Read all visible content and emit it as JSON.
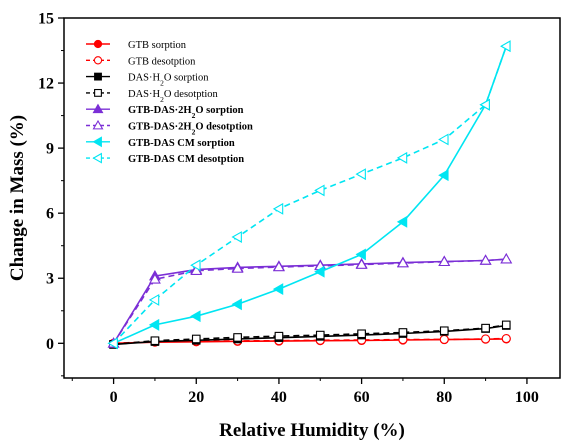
{
  "chart_data": {
    "type": "line",
    "xlabel": "Relative Humidity (%)",
    "ylabel": "Change in Mass (%)",
    "xlim": [
      -12,
      108
    ],
    "ylim": [
      -1.6,
      15
    ],
    "xticks": [
      0,
      20,
      40,
      60,
      80,
      100
    ],
    "yticks": [
      0,
      3,
      6,
      9,
      12,
      15
    ],
    "xtick_labels": [
      "0",
      "20",
      "40",
      "60",
      "80",
      "100"
    ],
    "ytick_labels": [
      "0",
      "3",
      "6",
      "9",
      "12",
      "15"
    ],
    "grid": false,
    "legend_position": "top-left",
    "series": [
      {
        "name": "GTB sorption",
        "legend_pre": "GTB sorption",
        "legend_sub": "",
        "legend_post": "",
        "bold": false,
        "color": "#ff0000",
        "marker": "circle",
        "filled": true,
        "dashed": false,
        "x": [
          0,
          10,
          20,
          30,
          40,
          50,
          60,
          70,
          80,
          90,
          95
        ],
        "y": [
          0,
          0.05,
          0.07,
          0.09,
          0.1,
          0.12,
          0.13,
          0.15,
          0.17,
          0.19,
          0.2
        ]
      },
      {
        "name": "GTB desotption",
        "legend_pre": "GTB desotption",
        "legend_sub": "",
        "legend_post": "",
        "bold": false,
        "color": "#ff0000",
        "marker": "circle",
        "filled": false,
        "dashed": true,
        "x": [
          0,
          10,
          20,
          30,
          40,
          50,
          60,
          70,
          80,
          90,
          95
        ],
        "y": [
          0,
          0.07,
          0.09,
          0.11,
          0.12,
          0.14,
          0.15,
          0.17,
          0.18,
          0.2,
          0.22
        ]
      },
      {
        "name": "DAS·H2O sorption",
        "legend_pre": "DAS·H",
        "legend_sub": "2",
        "legend_post": "O sorption",
        "bold": false,
        "color": "#000000",
        "marker": "square",
        "filled": true,
        "dashed": false,
        "x": [
          0,
          10,
          20,
          30,
          40,
          50,
          60,
          70,
          80,
          90,
          95
        ],
        "y": [
          -0.05,
          0.08,
          0.14,
          0.2,
          0.26,
          0.32,
          0.38,
          0.45,
          0.55,
          0.68,
          0.82
        ]
      },
      {
        "name": "DAS·H2O desotption",
        "legend_pre": "DAS·H",
        "legend_sub": "2",
        "legend_post": "O desotption",
        "bold": false,
        "color": "#000000",
        "marker": "square",
        "filled": false,
        "dashed": true,
        "x": [
          0,
          10,
          20,
          30,
          40,
          50,
          60,
          70,
          80,
          90,
          95
        ],
        "y": [
          -0.05,
          0.12,
          0.2,
          0.27,
          0.33,
          0.38,
          0.44,
          0.5,
          0.58,
          0.7,
          0.85
        ]
      },
      {
        "name": "GTB-DAS·2H2O sorption",
        "legend_pre": "GTB-DAS·2H",
        "legend_sub": "2",
        "legend_post": "O sorption",
        "bold": true,
        "color": "#7b2fd6",
        "marker": "triangle-up",
        "filled": true,
        "dashed": false,
        "x": [
          0,
          10,
          20,
          30,
          40,
          50,
          60,
          70,
          80,
          90,
          95
        ],
        "y": [
          0,
          3.1,
          3.4,
          3.5,
          3.55,
          3.6,
          3.66,
          3.72,
          3.77,
          3.82,
          3.88
        ]
      },
      {
        "name": "GTB-DAS·2H2O desotption",
        "legend_pre": "GTB-DAS·2H",
        "legend_sub": "2",
        "legend_post": "O desotption",
        "bold": true,
        "color": "#7b2fd6",
        "marker": "triangle-up",
        "filled": false,
        "dashed": true,
        "x": [
          0,
          10,
          20,
          30,
          40,
          50,
          60,
          70,
          80,
          90,
          95
        ],
        "y": [
          0,
          2.95,
          3.35,
          3.45,
          3.52,
          3.57,
          3.63,
          3.7,
          3.76,
          3.82,
          3.88
        ]
      },
      {
        "name": "GTB-DAS CM sorption",
        "legend_pre": "GTB-DAS CM sorption",
        "legend_sub": "",
        "legend_post": "",
        "bold": true,
        "color": "#00e5f2",
        "marker": "triangle-left",
        "filled": true,
        "dashed": false,
        "x": [
          0,
          10,
          20,
          30,
          40,
          50,
          60,
          70,
          80,
          90,
          95
        ],
        "y": [
          0,
          0.85,
          1.25,
          1.8,
          2.5,
          3.3,
          4.1,
          5.6,
          7.75,
          11.0,
          13.7
        ]
      },
      {
        "name": "GTB-DAS CM desotption",
        "legend_pre": "GTB-DAS CM desotption",
        "legend_sub": "",
        "legend_post": "",
        "bold": true,
        "color": "#00e5f2",
        "marker": "triangle-left",
        "filled": false,
        "dashed": true,
        "x": [
          0,
          10,
          20,
          30,
          40,
          50,
          60,
          70,
          80,
          90,
          95
        ],
        "y": [
          0,
          2.0,
          3.6,
          4.9,
          6.2,
          7.05,
          7.8,
          8.55,
          9.4,
          11.0,
          13.7
        ]
      }
    ]
  }
}
